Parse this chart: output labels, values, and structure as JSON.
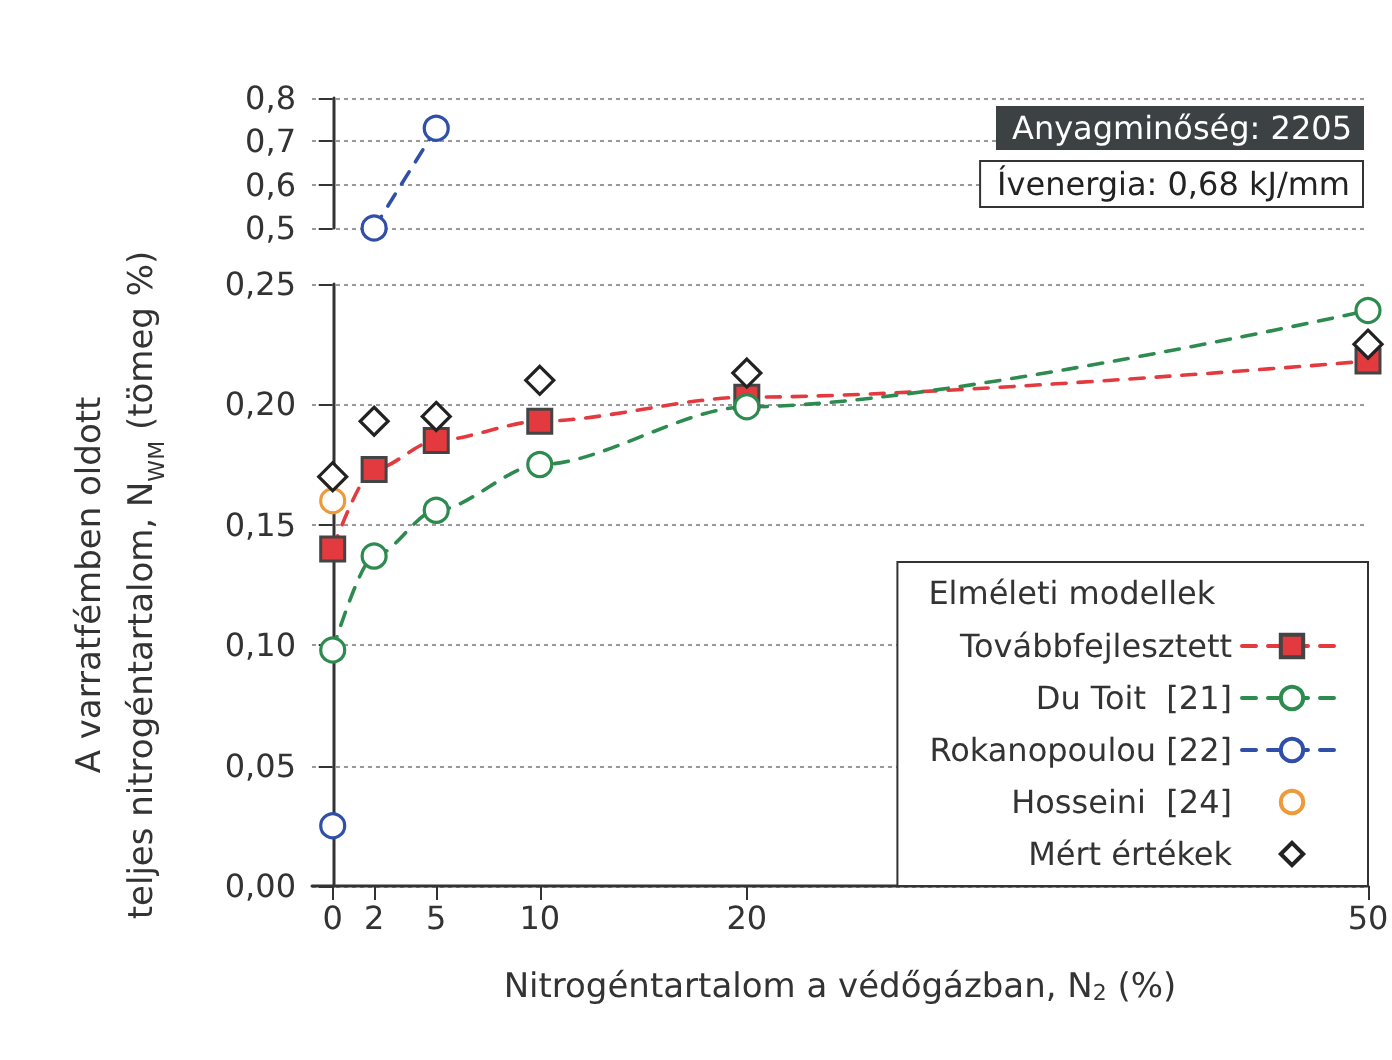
{
  "chart_data": [
    {
      "type": "line",
      "xlim": [
        -1,
        50
      ],
      "ylim": [
        0.5,
        0.8
      ],
      "yticks": [
        {
          "value": 0.5,
          "label": "0,5"
        },
        {
          "value": 0.6,
          "label": "0,6"
        },
        {
          "value": 0.7,
          "label": "0,7"
        },
        {
          "value": 0.8,
          "label": "0,8"
        }
      ],
      "tick_labels": "y",
      "grid": "y",
      "annotations": [
        "Anyagminőség: 2205",
        "Ívenergia: 0,68 kJ/mm"
      ],
      "series": [
        {
          "color": "#2f4fa8",
          "type": "line",
          "marker": "circle",
          "line_style": "dashed",
          "x": [
            2,
            5
          ],
          "values": [
            0.5,
            0.73
          ]
        }
      ]
    },
    {
      "type": "line",
      "xlim": [
        -1,
        50
      ],
      "xticks": [
        0,
        2,
        5,
        10,
        20,
        50
      ],
      "ylim": [
        0,
        0.25
      ],
      "yticks": [
        {
          "value": 0,
          "label": "0,00"
        },
        {
          "value": 0.05,
          "label": "0,05"
        },
        {
          "value": 0.1,
          "label": "0,10"
        },
        {
          "value": 0.15,
          "label": "0,15"
        },
        {
          "value": 0.2,
          "label": "0,20"
        },
        {
          "value": 0.25,
          "label": "0,25"
        }
      ],
      "grid": "y",
      "xlabel": "Nitrogéntartalom a védőgázban, N$_{2}$ (%)",
      "ylabel": "A varratfémben oldott\nteljes nitrogéntartalom, N$_{WM}$ (tömeg %)",
      "legend": "bottom right",
      "legend_title": "Elméleti modellek",
      "series": [
        {
          "name": "Továbbfejlesztett",
          "color": "#e23a3f",
          "type": "line",
          "marker": "square",
          "line_style": "dashed",
          "x": [
            0,
            2,
            5,
            10,
            20,
            50
          ],
          "values": [
            0.14,
            0.173,
            0.185,
            0.193,
            0.203,
            0.218
          ]
        },
        {
          "name": "Du Toit  [21]",
          "color": "#2e8b4f",
          "type": "line",
          "marker": "circle",
          "line_style": "dashed",
          "x": [
            0,
            2,
            5,
            10,
            20,
            50
          ],
          "values": [
            0.098,
            0.137,
            0.156,
            0.175,
            0.199,
            0.239
          ]
        },
        {
          "name": "Rokanopoulou [22]",
          "color": "#2f4fa8",
          "type": "line",
          "marker": "circle",
          "line_style": "dashed",
          "x": [
            0
          ],
          "values": [
            0.025
          ]
        },
        {
          "name": "Hosseini  [24]",
          "color": "#ee9a3a",
          "type": "scatter",
          "marker": "circle",
          "x": [
            0
          ],
          "values": [
            0.16
          ]
        },
        {
          "name": "Mért értékek",
          "color": "#222222",
          "type": "scatter",
          "marker": "diamond",
          "x": [
            0,
            2,
            5,
            10,
            20,
            50
          ],
          "values": [
            0.17,
            0.193,
            0.195,
            0.21,
            0.213,
            0.225
          ]
        }
      ]
    }
  ]
}
